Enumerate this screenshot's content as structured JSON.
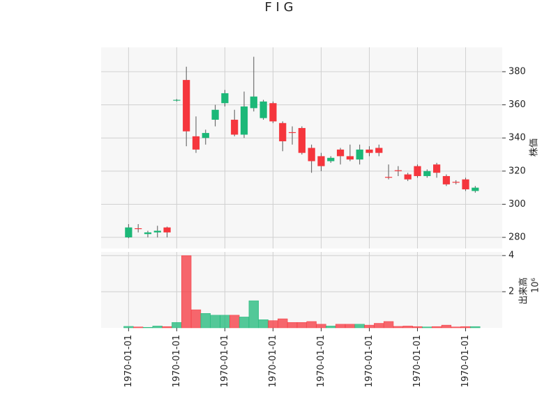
{
  "chart_data": {
    "type": "candlestick",
    "title": "F I G",
    "ylabel": "株価",
    "volume_label": "出来高",
    "volume_scale_label": "10⁶",
    "open": [
      280,
      285.5,
      282,
      283,
      286,
      362.5,
      375,
      341,
      340,
      351,
      361,
      351,
      342,
      358,
      352,
      361,
      349,
      343.5,
      346,
      334,
      329,
      326,
      333,
      329,
      327,
      333,
      334,
      316.5,
      320.5,
      318,
      323,
      317,
      324,
      317,
      313.5,
      315,
      308
    ],
    "high": [
      288,
      288,
      284,
      287,
      286.5,
      363.5,
      383,
      353,
      345,
      360,
      369,
      357,
      368,
      389,
      363,
      362,
      350,
      347,
      347,
      336,
      331,
      329,
      334,
      336,
      336,
      335,
      336,
      324,
      323,
      319,
      324,
      321,
      325,
      318,
      314.5,
      316,
      311
    ],
    "low": [
      279.5,
      283,
      280,
      280,
      280,
      362,
      335,
      331,
      336,
      347,
      359,
      341,
      340,
      356,
      351,
      349,
      332,
      336,
      330,
      319,
      320,
      325,
      324,
      326,
      324,
      329,
      329,
      315,
      317,
      314,
      316,
      316,
      316,
      311,
      312,
      308,
      307
    ],
    "close": [
      286,
      285,
      283,
      284,
      283,
      363,
      344,
      333,
      343,
      357,
      367,
      342,
      359,
      365,
      362,
      350,
      338,
      343,
      331,
      326,
      323,
      328,
      329,
      327,
      333,
      331,
      331,
      316,
      320,
      315,
      317,
      320,
      319,
      312,
      313,
      309,
      310
    ],
    "volume": [
      0.08,
      0.05,
      0.03,
      0.1,
      0.07,
      0.3,
      4.0,
      1.0,
      0.8,
      0.7,
      0.7,
      0.7,
      0.6,
      1.5,
      0.45,
      0.4,
      0.5,
      0.3,
      0.3,
      0.35,
      0.2,
      0.1,
      0.2,
      0.2,
      0.2,
      0.15,
      0.25,
      0.35,
      0.08,
      0.1,
      0.07,
      0.05,
      0.07,
      0.15,
      0.05,
      0.07,
      0.07
    ],
    "up_color": "#1cb878",
    "down_color": "#f5363d",
    "xlim": [
      -2.85,
      38.8
    ],
    "xticks": [
      {
        "value": 0,
        "label": "1970-01-01"
      },
      {
        "value": 5,
        "label": "1970-01-01"
      },
      {
        "value": 10,
        "label": "1970-01-01"
      },
      {
        "value": 15,
        "label": "1970-01-01"
      },
      {
        "value": 20,
        "label": "1970-01-01"
      },
      {
        "value": 25,
        "label": "1970-01-01"
      },
      {
        "value": 30,
        "label": "1970-01-01"
      },
      {
        "value": 35,
        "label": "1970-01-01"
      }
    ],
    "ylim": [
      273.3,
      394.7
    ],
    "yticks": [
      280,
      300,
      320,
      340,
      360,
      380
    ],
    "volume_ylim": [
      0,
      4.2
    ],
    "volume_yticks": [
      2,
      4
    ],
    "grid": true
  }
}
